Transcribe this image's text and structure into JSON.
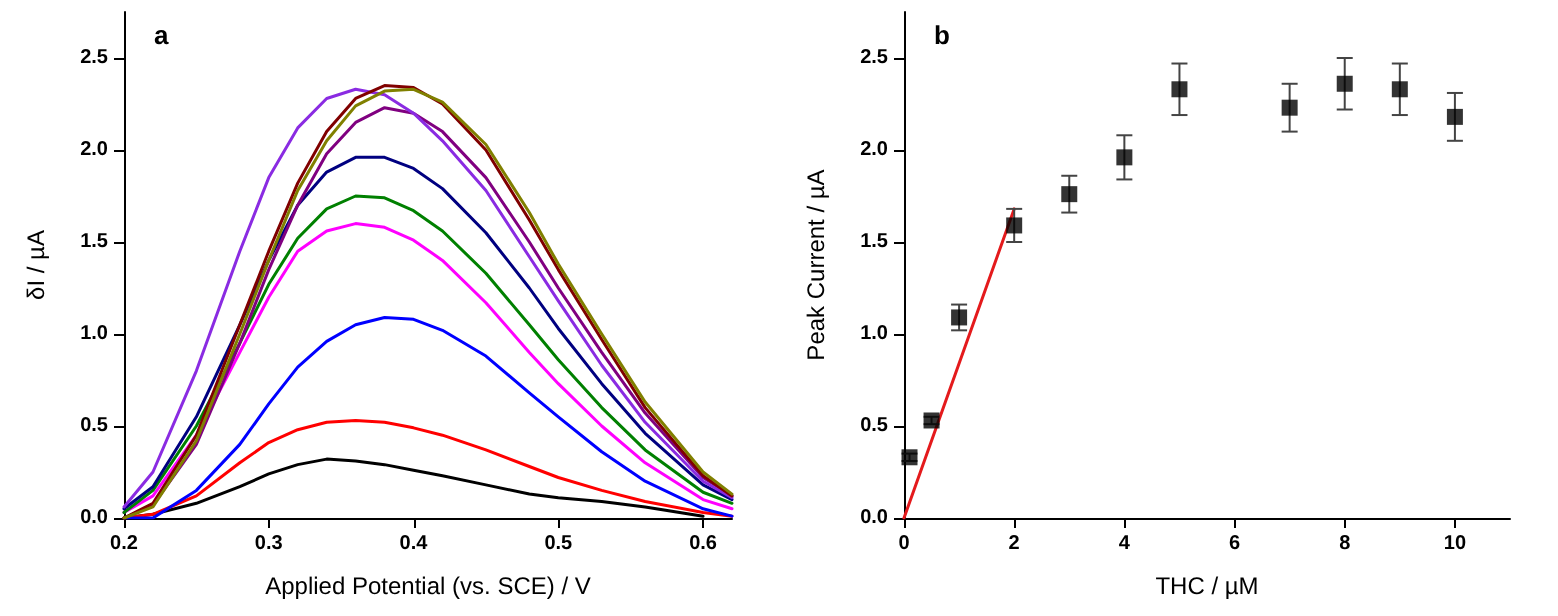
{
  "chart_data": [
    {
      "type": "line",
      "title": "a",
      "xlabel": "Applied Potential (vs. SCE) / V",
      "ylabel": "δI / µA",
      "xlim": [
        0.2,
        0.62
      ],
      "xticks": [
        0.2,
        0.3,
        0.4,
        0.5,
        0.6
      ],
      "ylim": [
        0,
        2.75
      ],
      "yticks": [
        {
          "value": 0,
          "label": "0.0"
        },
        {
          "value": 0.5,
          "label": "0.5"
        },
        {
          "value": 1,
          "label": "1.0"
        },
        {
          "value": 1.5,
          "label": "1.5"
        },
        {
          "value": 2,
          "label": "2.0"
        },
        {
          "value": 2.5,
          "label": "2.5"
        }
      ],
      "grid": false,
      "line_style": "solid",
      "marker": "none",
      "x": [
        0.2,
        0.22,
        0.25,
        0.28,
        0.3,
        0.32,
        0.34,
        0.36,
        0.38,
        0.4,
        0.42,
        0.45,
        0.48,
        0.5,
        0.53,
        0.56,
        0.6,
        0.62
      ],
      "series": [
        {
          "color": "#000000",
          "values": [
            0.0,
            0.02,
            0.08,
            0.17,
            0.24,
            0.29,
            0.32,
            0.31,
            0.29,
            0.26,
            0.23,
            0.18,
            0.13,
            0.11,
            0.09,
            0.06,
            0.01,
            null
          ]
        },
        {
          "color": "#ff0000",
          "values": [
            0.0,
            0.02,
            0.12,
            0.3,
            0.41,
            0.48,
            0.52,
            0.53,
            0.52,
            0.49,
            0.45,
            0.37,
            0.28,
            0.22,
            0.15,
            0.09,
            0.03,
            0.01
          ]
        },
        {
          "color": "#0000ff",
          "values": [
            0.0,
            0.0,
            0.15,
            0.4,
            0.62,
            0.82,
            0.96,
            1.05,
            1.09,
            1.08,
            1.02,
            0.88,
            0.68,
            0.55,
            0.36,
            0.2,
            0.05,
            0.01
          ]
        },
        {
          "color": "#ff00ff",
          "values": [
            0.03,
            0.12,
            0.45,
            0.9,
            1.2,
            1.45,
            1.56,
            1.6,
            1.58,
            1.51,
            1.4,
            1.17,
            0.9,
            0.73,
            0.5,
            0.3,
            0.1,
            0.05
          ]
        },
        {
          "color": "#008000",
          "values": [
            0.03,
            0.15,
            0.5,
            0.95,
            1.27,
            1.52,
            1.68,
            1.75,
            1.74,
            1.67,
            1.56,
            1.33,
            1.05,
            0.86,
            0.6,
            0.37,
            0.14,
            0.08
          ]
        },
        {
          "color": "#000080",
          "values": [
            0.05,
            0.17,
            0.55,
            1.05,
            1.4,
            1.7,
            1.88,
            1.96,
            1.96,
            1.9,
            1.79,
            1.55,
            1.25,
            1.03,
            0.73,
            0.46,
            0.18,
            0.1
          ]
        },
        {
          "color": "#800080",
          "values": [
            0.0,
            0.07,
            0.4,
            0.95,
            1.35,
            1.7,
            1.98,
            2.15,
            2.23,
            2.2,
            2.1,
            1.85,
            1.5,
            1.25,
            0.9,
            0.57,
            0.22,
            0.12
          ]
        },
        {
          "color": "#8a2be2",
          "values": [
            0.06,
            0.25,
            0.8,
            1.45,
            1.85,
            2.12,
            2.28,
            2.33,
            2.3,
            2.2,
            2.05,
            1.78,
            1.42,
            1.18,
            0.83,
            0.52,
            0.2,
            0.11
          ]
        },
        {
          "color": "#800000",
          "values": [
            0.0,
            0.08,
            0.45,
            1.05,
            1.45,
            1.82,
            2.1,
            2.28,
            2.35,
            2.34,
            2.25,
            2.0,
            1.62,
            1.35,
            0.97,
            0.6,
            0.23,
            0.12
          ]
        },
        {
          "color": "#808000",
          "values": [
            0.0,
            0.06,
            0.42,
            1.0,
            1.4,
            1.78,
            2.05,
            2.24,
            2.32,
            2.33,
            2.26,
            2.03,
            1.66,
            1.38,
            1.0,
            0.63,
            0.25,
            0.13
          ]
        }
      ]
    },
    {
      "type": "scatter",
      "title": "b",
      "xlabel": "THC / µM",
      "ylabel": "Peak Current / µA",
      "xlim": [
        0,
        11
      ],
      "xticks": [
        0,
        2,
        4,
        6,
        8,
        10
      ],
      "ylim": [
        0,
        2.75
      ],
      "yticks": [
        {
          "value": 0,
          "label": "0.0"
        },
        {
          "value": 0.5,
          "label": "0.5"
        },
        {
          "value": 1,
          "label": "1.0"
        },
        {
          "value": 1.5,
          "label": "1.5"
        },
        {
          "value": 2,
          "label": "2.0"
        },
        {
          "value": 2.5,
          "label": "2.5"
        }
      ],
      "grid": false,
      "marker": "square",
      "series": [
        {
          "color": "#000000",
          "x": [
            0.1,
            0.5,
            1,
            2,
            3,
            4,
            5,
            7,
            8,
            9,
            10
          ],
          "values": [
            0.33,
            0.53,
            1.09,
            1.59,
            1.76,
            1.96,
            2.33,
            2.23,
            2.36,
            2.33,
            2.18
          ],
          "errors": [
            0.02,
            0.02,
            0.07,
            0.09,
            0.1,
            0.12,
            0.14,
            0.13,
            0.14,
            0.14,
            0.13
          ]
        },
        {
          "type": "line",
          "marker": "none",
          "color": "#e41a1c",
          "x": [
            0,
            2
          ],
          "values": [
            0,
            1.68
          ]
        }
      ]
    }
  ]
}
